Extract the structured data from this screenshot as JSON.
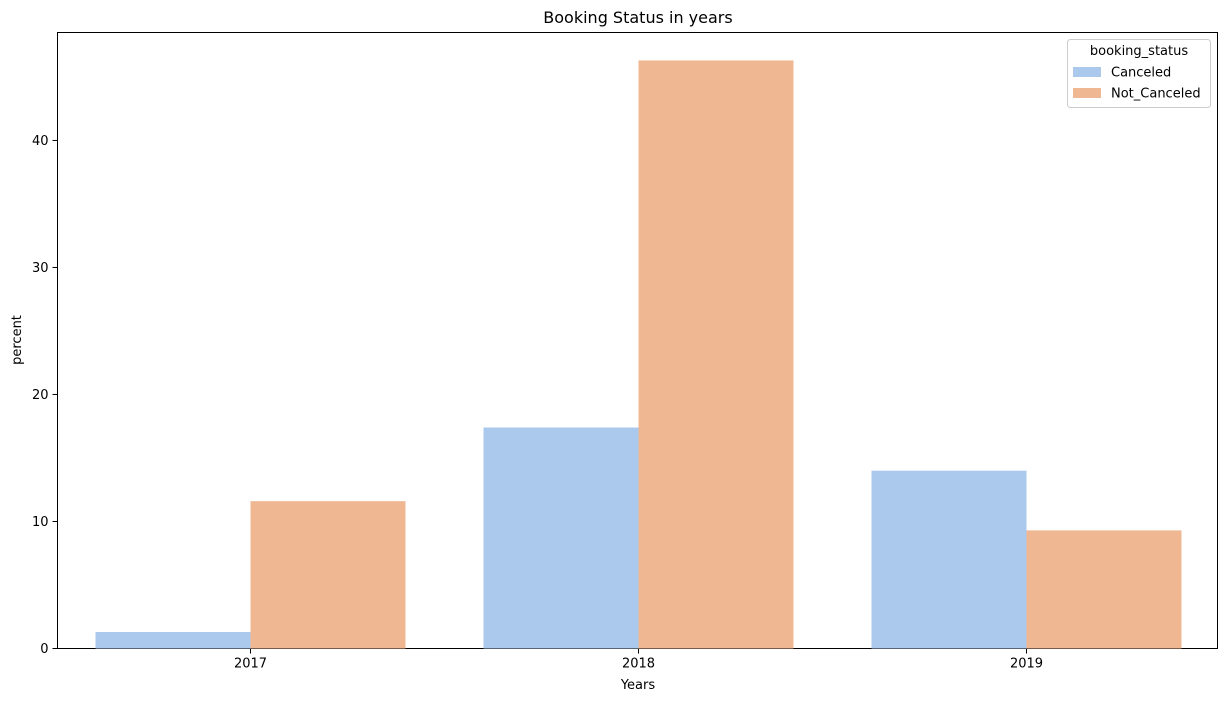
{
  "chart_data": {
    "type": "bar",
    "title": "Booking Status in years",
    "xlabel": "Years",
    "ylabel": "percent",
    "categories": [
      "2017",
      "2018",
      "2019"
    ],
    "series": [
      {
        "name": "Canceled",
        "values": [
          1.3,
          17.4,
          14.0
        ],
        "color": "#abc9ed"
      },
      {
        "name": "Not_Canceled",
        "values": [
          11.6,
          46.3,
          9.3
        ],
        "color": "#f0b892"
      }
    ],
    "ylim": [
      0,
      48.5
    ],
    "yticks": [
      0,
      10,
      20,
      30,
      40
    ],
    "ytick_labels": [
      "0",
      "10",
      "20",
      "30",
      "40"
    ],
    "grid": false,
    "legend": {
      "title": "booking_status",
      "placement": "top-right"
    }
  }
}
